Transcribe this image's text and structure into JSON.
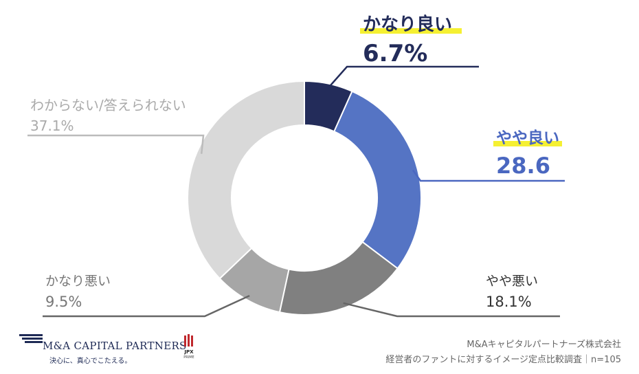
{
  "chart_data": {
    "type": "pie",
    "donut": true,
    "slices": [
      {
        "label": "かなり良い",
        "value": 6.7,
        "value_text": "6.7%",
        "color": "#232c5a",
        "highlight": true
      },
      {
        "label": "やや良い",
        "value": 28.6,
        "value_text": "28.6",
        "color": "#5574c4",
        "highlight": true
      },
      {
        "label": "やや悪い",
        "value": 18.1,
        "value_text": "18.1%",
        "color": "#808080",
        "highlight": false
      },
      {
        "label": "かなり悪い",
        "value": 9.5,
        "value_text": "9.5%",
        "color": "#a6a6a6",
        "highlight": false
      },
      {
        "label": "わからない/答えられない",
        "value": 37.1,
        "value_text": "37.1%",
        "color": "#d9d9d9",
        "highlight": false
      }
    ],
    "highlight_color": "#f5f032",
    "legend": "none"
  },
  "footer": {
    "company": "M&Aキャピタルパートナーズ株式会社",
    "survey": "経営者のファントに対するイメージ定点比較調査｜n=105"
  },
  "logo": {
    "name": "M&A CAPITAL PARTNERS",
    "tagline": "決心に、真心でこたえる。",
    "badge_main": "JPX",
    "badge_sub": "PRIME"
  }
}
